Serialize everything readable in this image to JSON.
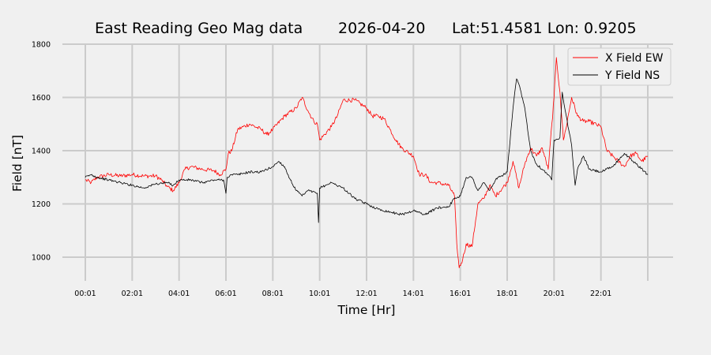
{
  "title": {
    "name": "East Reading Geo Mag data",
    "date": "2026-04-20",
    "location": "Lat:51.4581  Lon: 0.9205"
  },
  "colors": {
    "background": "#f0f0f0",
    "grid": "#cbcbcb",
    "x_series": "#ff0000",
    "y_series": "#000000"
  },
  "chart_data": {
    "type": "line",
    "xlabel": "Time  [Hr]",
    "ylabel": "Field  [nT]",
    "xlim": [
      0,
      24.2
    ],
    "ylim": [
      905,
      1805
    ],
    "x_unit": "hours since 00:01",
    "grid": true,
    "legend_position": "top-right",
    "x_ticks": [
      {
        "v": 0,
        "label": "00:01"
      },
      {
        "v": 2,
        "label": "02:01"
      },
      {
        "v": 4,
        "label": "04:01"
      },
      {
        "v": 6,
        "label": "06:01"
      },
      {
        "v": 8,
        "label": "08:01"
      },
      {
        "v": 10,
        "label": "10:01"
      },
      {
        "v": 12,
        "label": "12:01"
      },
      {
        "v": 14,
        "label": "14:01"
      },
      {
        "v": 16,
        "label": "16:01"
      },
      {
        "v": 18,
        "label": "18:01"
      },
      {
        "v": 20,
        "label": "20:01"
      },
      {
        "v": 22,
        "label": "22:01"
      },
      {
        "v": 24,
        "label": ""
      }
    ],
    "y_ticks": [
      {
        "v": 1000,
        "label": "1000"
      },
      {
        "v": 1200,
        "label": "1200"
      },
      {
        "v": 1400,
        "label": "1400"
      },
      {
        "v": 1600,
        "label": "1600"
      },
      {
        "v": 1800,
        "label": "1800"
      }
    ],
    "series": [
      {
        "name": "X Field EW",
        "color": "#ff0000",
        "x": [
          0,
          0.25,
          0.5,
          1,
          1.5,
          2,
          2.5,
          3,
          3.25,
          3.5,
          3.75,
          4,
          4.25,
          4.5,
          5,
          5.5,
          5.75,
          6,
          6.1,
          6.25,
          6.5,
          7,
          7.5,
          7.75,
          8,
          8.5,
          9,
          9.25,
          9.5,
          9.75,
          9.9,
          10,
          10.5,
          10.75,
          11,
          11.5,
          12,
          12.25,
          12.5,
          12.75,
          13,
          13.25,
          13.5,
          14,
          14.25,
          14.5,
          14.75,
          15,
          15.5,
          15.75,
          15.85,
          15.95,
          16.1,
          16.25,
          16.5,
          16.75,
          17,
          17.25,
          17.5,
          18,
          18.25,
          18.5,
          18.75,
          19,
          19.25,
          19.5,
          19.75,
          20,
          20.1,
          20.25,
          20.4,
          20.5,
          20.75,
          21,
          21.25,
          21.5,
          22,
          22.25,
          22.5,
          23,
          23.25,
          23.5,
          23.75,
          24
        ],
        "y": [
          1290,
          1280,
          1300,
          1310,
          1305,
          1310,
          1305,
          1305,
          1290,
          1265,
          1250,
          1280,
          1330,
          1340,
          1330,
          1325,
          1310,
          1330,
          1390,
          1400,
          1480,
          1500,
          1480,
          1460,
          1480,
          1530,
          1560,
          1600,
          1550,
          1510,
          1500,
          1440,
          1490,
          1530,
          1590,
          1590,
          1560,
          1530,
          1530,
          1520,
          1480,
          1440,
          1410,
          1380,
          1310,
          1310,
          1280,
          1280,
          1270,
          1230,
          1050,
          960,
          990,
          1050,
          1040,
          1200,
          1220,
          1270,
          1230,
          1280,
          1360,
          1260,
          1350,
          1410,
          1380,
          1410,
          1330,
          1600,
          1750,
          1620,
          1440,
          1480,
          1600,
          1530,
          1510,
          1510,
          1490,
          1400,
          1380,
          1340,
          1380,
          1390,
          1360,
          1380
        ]
      },
      {
        "name": "Y Field NS",
        "color": "#000000",
        "x": [
          0,
          0.25,
          0.5,
          1,
          1.5,
          2,
          2.5,
          3,
          3.5,
          3.75,
          4,
          4.5,
          5,
          5.5,
          5.9,
          6,
          6.05,
          6.25,
          6.5,
          7,
          7.5,
          8,
          8.25,
          8.5,
          8.75,
          9,
          9.25,
          9.5,
          9.9,
          9.95,
          10,
          10.5,
          11,
          11.5,
          12,
          12.5,
          13,
          13.5,
          14,
          14.5,
          15,
          15.5,
          15.75,
          16,
          16.25,
          16.5,
          16.75,
          17,
          17.25,
          17.5,
          18,
          18.25,
          18.4,
          18.5,
          18.75,
          19,
          19.25,
          19.5,
          19.75,
          19.9,
          20,
          20.25,
          20.35,
          20.5,
          20.75,
          20.9,
          21,
          21.25,
          21.5,
          22,
          22.5,
          23,
          23.25,
          23.5,
          24
        ],
        "y": [
          1300,
          1310,
          1300,
          1290,
          1280,
          1270,
          1260,
          1275,
          1280,
          1270,
          1290,
          1290,
          1280,
          1290,
          1290,
          1240,
          1300,
          1310,
          1310,
          1320,
          1320,
          1340,
          1360,
          1340,
          1290,
          1250,
          1230,
          1250,
          1240,
          1130,
          1260,
          1280,
          1260,
          1220,
          1200,
          1180,
          1170,
          1160,
          1175,
          1160,
          1185,
          1190,
          1220,
          1230,
          1300,
          1300,
          1250,
          1280,
          1250,
          1290,
          1320,
          1560,
          1670,
          1650,
          1560,
          1400,
          1350,
          1330,
          1310,
          1290,
          1440,
          1450,
          1620,
          1540,
          1420,
          1270,
          1330,
          1380,
          1330,
          1320,
          1340,
          1390,
          1370,
          1350,
          1310
        ]
      }
    ]
  }
}
